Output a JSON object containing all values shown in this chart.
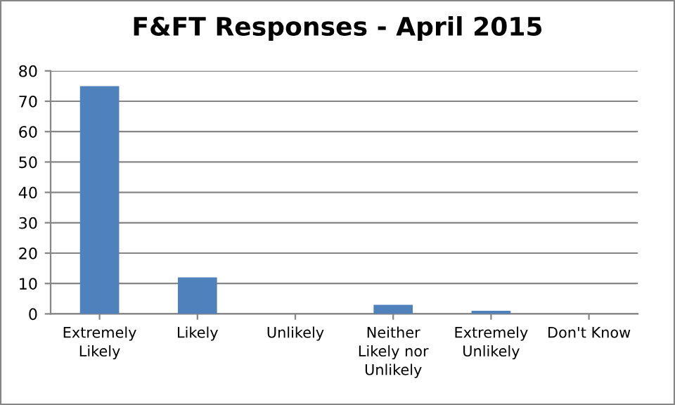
{
  "chart_data": {
    "type": "bar",
    "title": "F&FT Responses - April 2015",
    "categories": [
      "Extremely\nLikely",
      "Likely",
      "Unlikely",
      "Neither\nLikely nor\nUnlikely",
      "Extremely\nUnlikely",
      "Don't Know"
    ],
    "values": [
      75,
      12,
      0,
      3,
      1,
      0
    ],
    "color": "#4f81bd",
    "ylim": [
      0,
      80
    ],
    "yticks": [
      0,
      10,
      20,
      30,
      40,
      50,
      60,
      70,
      80
    ],
    "grid": "y",
    "legend": false
  }
}
